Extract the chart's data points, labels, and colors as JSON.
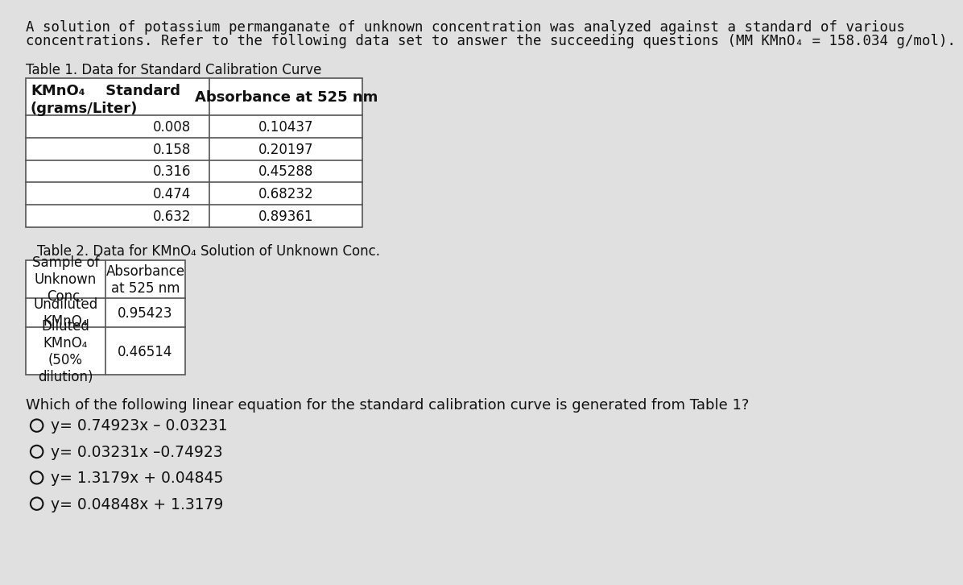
{
  "background_color": "#e0e0e0",
  "intro_text_line1": "A solution of potassium permanganate of unknown concentration was analyzed against a standard of various",
  "intro_text_line2": "concentrations. Refer to the following data set to answer the succeeding questions (MM KMnO₄ = 158.034 g/mol).",
  "table1_title": "Table 1. Data for Standard Calibration Curve",
  "table1_col1": [
    "0.008",
    "0.158",
    "0.316",
    "0.474",
    "0.632"
  ],
  "table1_col2": [
    "0.10437",
    "0.20197",
    "0.45288",
    "0.68232",
    "0.89361"
  ],
  "table2_title": "Table 2. Data for KMnO₄ Solution of Unknown Conc.",
  "table2_col1_header_line1": "Sample of",
  "table2_col1_header_line2": "Unknown",
  "table2_col1_header_line3": "Conc.",
  "table2_col2_header_line1": "Absorbance",
  "table2_col2_header_line2": "at 525 nm",
  "table2_row1_col1_line1": "Undiluted",
  "table2_row1_col1_line2": "KMnO₄",
  "table2_row1_col2": "0.95423",
  "table2_row2_col1_line1": "Diluted",
  "table2_row2_col1_line2": "KMnO₄",
  "table2_row2_col1_line3": "(50%",
  "table2_row2_col1_line4": "dilution)",
  "table2_row2_col2": "0.46514",
  "question_text": "Which of the following linear equation for the standard calibration curve is generated from Table 1?",
  "options": [
    "y= 0.74923x – 0.03231",
    "y= 0.03231x –0.74923",
    "y= 1.3179x + 0.04845",
    "y= 0.04848x + 1.3179"
  ],
  "fs_intro": 12.5,
  "fs_table_header": 12,
  "fs_table_data": 12,
  "fs_title": 12,
  "fs_question": 13,
  "fs_options": 13.5,
  "text_color": "#111111",
  "table_bg": "#ffffff",
  "table_line_color": "#555555"
}
